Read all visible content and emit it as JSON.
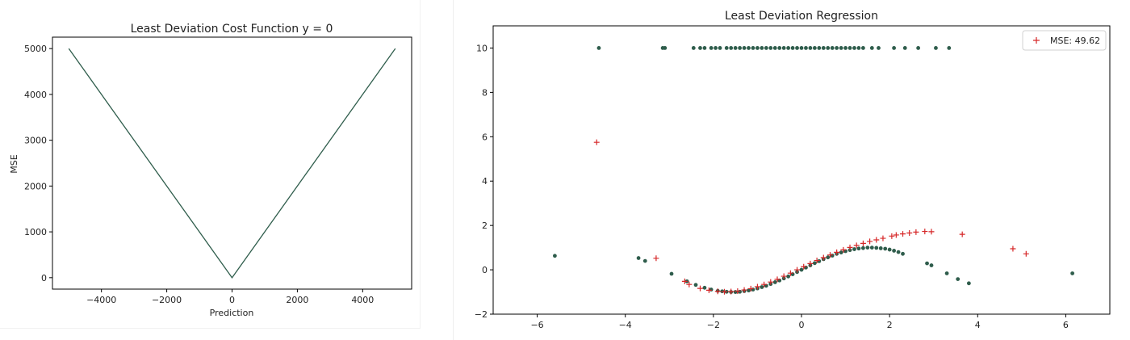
{
  "colors": {
    "series": "#2f5d4c",
    "prediction": "#d62728",
    "axis": "#000000",
    "background": "#ffffff"
  },
  "chart_data": [
    {
      "type": "line",
      "title": "Least Deviation Cost Function y = 0",
      "xlabel": "Prediction",
      "ylabel": "MSE",
      "xlim": [
        -5500,
        5500
      ],
      "ylim": [
        -250,
        5250
      ],
      "xticks": [
        -4000,
        -2000,
        0,
        2000,
        4000
      ],
      "xtick_labels": [
        "−4000",
        "−2000",
        "0",
        "2000",
        "4000"
      ],
      "yticks": [
        0,
        1000,
        2000,
        3000,
        4000,
        5000
      ],
      "ytick_labels": [
        "0",
        "1000",
        "2000",
        "3000",
        "4000",
        "5000"
      ],
      "grid": false,
      "x": [
        -5000,
        0,
        5000
      ],
      "y": [
        5000,
        0,
        5000
      ]
    },
    {
      "type": "scatter",
      "title": "Least Deviation Regression",
      "xlabel": "",
      "ylabel": "",
      "xlim": [
        -7.0,
        7.0
      ],
      "ylim": [
        -2,
        11
      ],
      "xticks": [
        -6,
        -4,
        -2,
        0,
        2,
        4,
        6
      ],
      "xtick_labels": [
        "−6",
        "−4",
        "−2",
        "0",
        "2",
        "4",
        "6"
      ],
      "yticks": [
        -2,
        0,
        2,
        4,
        6,
        8,
        10
      ],
      "ytick_labels": [
        "−2",
        "0",
        "2",
        "4",
        "6",
        "8",
        "10"
      ],
      "grid": false,
      "legend": {
        "position": "top-right",
        "entries": [
          {
            "label": "MSE: 49.62",
            "marker": "+",
            "color": "#d62728"
          }
        ]
      },
      "series": [
        {
          "name": "",
          "marker": "dot",
          "color": "#2f5d4c",
          "points": [
            [
              -4.6,
              10
            ],
            [
              -3.15,
              10
            ],
            [
              -3.1,
              10
            ],
            [
              -2.45,
              10
            ],
            [
              -2.3,
              10
            ],
            [
              -2.2,
              10
            ],
            [
              -2.05,
              10
            ],
            [
              -1.95,
              10
            ],
            [
              -1.85,
              10
            ],
            [
              -1.7,
              10
            ],
            [
              -1.6,
              10
            ],
            [
              -1.5,
              10
            ],
            [
              -1.4,
              10
            ],
            [
              -1.3,
              10
            ],
            [
              -1.2,
              10
            ],
            [
              -1.1,
              10
            ],
            [
              -1.0,
              10
            ],
            [
              -0.9,
              10
            ],
            [
              -0.8,
              10
            ],
            [
              -0.7,
              10
            ],
            [
              -0.6,
              10
            ],
            [
              -0.5,
              10
            ],
            [
              -0.4,
              10
            ],
            [
              -0.3,
              10
            ],
            [
              -0.2,
              10
            ],
            [
              -0.1,
              10
            ],
            [
              0.0,
              10
            ],
            [
              0.1,
              10
            ],
            [
              0.2,
              10
            ],
            [
              0.3,
              10
            ],
            [
              0.4,
              10
            ],
            [
              0.5,
              10
            ],
            [
              0.6,
              10
            ],
            [
              0.7,
              10
            ],
            [
              0.8,
              10
            ],
            [
              0.9,
              10
            ],
            [
              1.0,
              10
            ],
            [
              1.1,
              10
            ],
            [
              1.2,
              10
            ],
            [
              1.3,
              10
            ],
            [
              1.4,
              10
            ],
            [
              1.6,
              10
            ],
            [
              1.75,
              10
            ],
            [
              2.1,
              10
            ],
            [
              2.35,
              10
            ],
            [
              2.65,
              10
            ],
            [
              3.05,
              10
            ],
            [
              3.35,
              10
            ],
            [
              -5.6,
              0.63
            ],
            [
              -3.7,
              0.53
            ],
            [
              -3.55,
              0.4
            ],
            [
              -2.95,
              -0.18
            ],
            [
              -2.6,
              -0.52
            ],
            [
              -2.4,
              -0.68
            ],
            [
              -2.2,
              -0.81
            ],
            [
              -2.05,
              -0.89
            ],
            [
              -1.9,
              -0.95
            ],
            [
              -1.8,
              -0.97
            ],
            [
              -1.7,
              -0.99
            ],
            [
              -1.6,
              -1.0
            ],
            [
              -1.5,
              -1.0
            ],
            [
              -1.4,
              -0.99
            ],
            [
              -1.3,
              -0.96
            ],
            [
              -1.2,
              -0.93
            ],
            [
              -1.1,
              -0.89
            ],
            [
              -1.0,
              -0.84
            ],
            [
              -0.9,
              -0.78
            ],
            [
              -0.8,
              -0.72
            ],
            [
              -0.7,
              -0.64
            ],
            [
              -0.6,
              -0.56
            ],
            [
              -0.5,
              -0.48
            ],
            [
              -0.4,
              -0.39
            ],
            [
              -0.3,
              -0.3
            ],
            [
              -0.2,
              -0.2
            ],
            [
              -0.1,
              -0.1
            ],
            [
              0.0,
              0.0
            ],
            [
              0.1,
              0.1
            ],
            [
              0.2,
              0.2
            ],
            [
              0.3,
              0.3
            ],
            [
              0.4,
              0.39
            ],
            [
              0.5,
              0.48
            ],
            [
              0.6,
              0.56
            ],
            [
              0.7,
              0.64
            ],
            [
              0.8,
              0.72
            ],
            [
              0.9,
              0.78
            ],
            [
              1.0,
              0.84
            ],
            [
              1.1,
              0.89
            ],
            [
              1.2,
              0.93
            ],
            [
              1.3,
              0.96
            ],
            [
              1.4,
              0.98
            ],
            [
              1.5,
              1.0
            ],
            [
              1.6,
              1.0
            ],
            [
              1.7,
              0.99
            ],
            [
              1.8,
              0.97
            ],
            [
              1.9,
              0.95
            ],
            [
              2.0,
              0.91
            ],
            [
              2.1,
              0.86
            ],
            [
              2.2,
              0.8
            ],
            [
              2.3,
              0.72
            ],
            [
              2.85,
              0.29
            ],
            [
              2.95,
              0.2
            ],
            [
              3.3,
              -0.16
            ],
            [
              3.55,
              -0.42
            ],
            [
              3.8,
              -0.61
            ],
            [
              6.15,
              -0.16
            ]
          ]
        },
        {
          "name": "MSE: 49.62",
          "marker": "+",
          "color": "#d62728",
          "points": [
            [
              -4.65,
              5.75
            ],
            [
              -3.3,
              0.52
            ],
            [
              -2.65,
              -0.52
            ],
            [
              -2.55,
              -0.66
            ],
            [
              -2.3,
              -0.84
            ],
            [
              -2.1,
              -0.92
            ],
            [
              -1.9,
              -0.97
            ],
            [
              -1.75,
              -0.99
            ],
            [
              -1.6,
              -0.98
            ],
            [
              -1.45,
              -0.96
            ],
            [
              -1.3,
              -0.91
            ],
            [
              -1.15,
              -0.85
            ],
            [
              -1.0,
              -0.76
            ],
            [
              -0.85,
              -0.66
            ],
            [
              -0.7,
              -0.55
            ],
            [
              -0.55,
              -0.43
            ],
            [
              -0.4,
              -0.29
            ],
            [
              -0.25,
              -0.15
            ],
            [
              -0.1,
              0.0
            ],
            [
              0.05,
              0.14
            ],
            [
              0.2,
              0.28
            ],
            [
              0.35,
              0.42
            ],
            [
              0.5,
              0.55
            ],
            [
              0.65,
              0.67
            ],
            [
              0.8,
              0.79
            ],
            [
              0.95,
              0.9
            ],
            [
              1.1,
              1.01
            ],
            [
              1.25,
              1.1
            ],
            [
              1.4,
              1.19
            ],
            [
              1.55,
              1.28
            ],
            [
              1.7,
              1.35
            ],
            [
              1.85,
              1.42
            ],
            [
              2.05,
              1.52
            ],
            [
              2.15,
              1.57
            ],
            [
              2.3,
              1.62
            ],
            [
              2.45,
              1.66
            ],
            [
              2.6,
              1.7
            ],
            [
              2.8,
              1.73
            ],
            [
              2.95,
              1.72
            ],
            [
              3.65,
              1.6
            ],
            [
              4.8,
              0.95
            ],
            [
              5.1,
              0.72
            ]
          ]
        }
      ]
    }
  ]
}
